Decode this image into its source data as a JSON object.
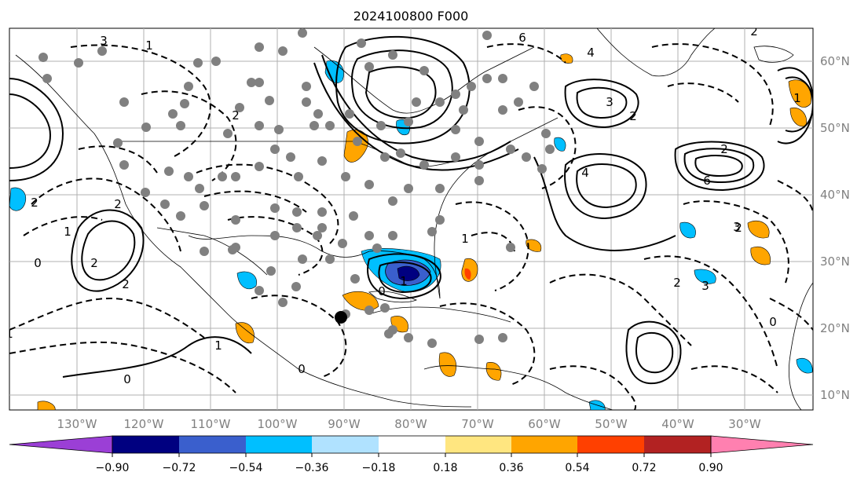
{
  "title": "2024100800 F000",
  "map": {
    "lon_ticks": [
      "130°W",
      "120°W",
      "110°W",
      "100°W",
      "90°W",
      "80°W",
      "70°W",
      "60°W",
      "50°W",
      "40°W",
      "30°W"
    ],
    "lat_ticks": [
      "60°N",
      "50°N",
      "40°N",
      "30°N",
      "20°N",
      "10°N"
    ],
    "contour_labels": [
      "3",
      "1",
      "6",
      "4",
      "3",
      "2",
      "2",
      "4",
      "6",
      "2",
      "0",
      "2",
      "2",
      "1",
      "0",
      "1",
      "1",
      "0",
      "2",
      "2",
      "1",
      "3",
      "2",
      "1",
      "0",
      "2",
      "1",
      "3",
      "2",
      "0"
    ],
    "line_color": "#000000",
    "station_color": "#808080",
    "storm_marker_color": "#000000",
    "coast_color": "#000000",
    "grid_color": "#b0b0b0"
  },
  "colorbar": {
    "ticks": [
      "−0.90",
      "−0.72",
      "−0.54",
      "−0.36",
      "−0.18",
      "0.18",
      "0.36",
      "0.54",
      "0.72",
      "0.90"
    ],
    "colors": [
      "#9b3fd6",
      "#000080",
      "#3a5fcd",
      "#00bfff",
      "#b0e2ff",
      "#ffffff",
      "#ffe680",
      "#ffa500",
      "#ff4000",
      "#b22222",
      "#ff80b0"
    ],
    "extend": "both"
  },
  "chart_data": {
    "type": "heatmap",
    "title": "2024100800 F000",
    "levels": [
      -0.9,
      -0.72,
      -0.54,
      -0.36,
      -0.18,
      0.18,
      0.36,
      0.54,
      0.72,
      0.9
    ],
    "lon_range": [
      "135°W",
      "15°W"
    ],
    "lat_range": [
      "8°N",
      "65°N"
    ],
    "grid": true
  }
}
